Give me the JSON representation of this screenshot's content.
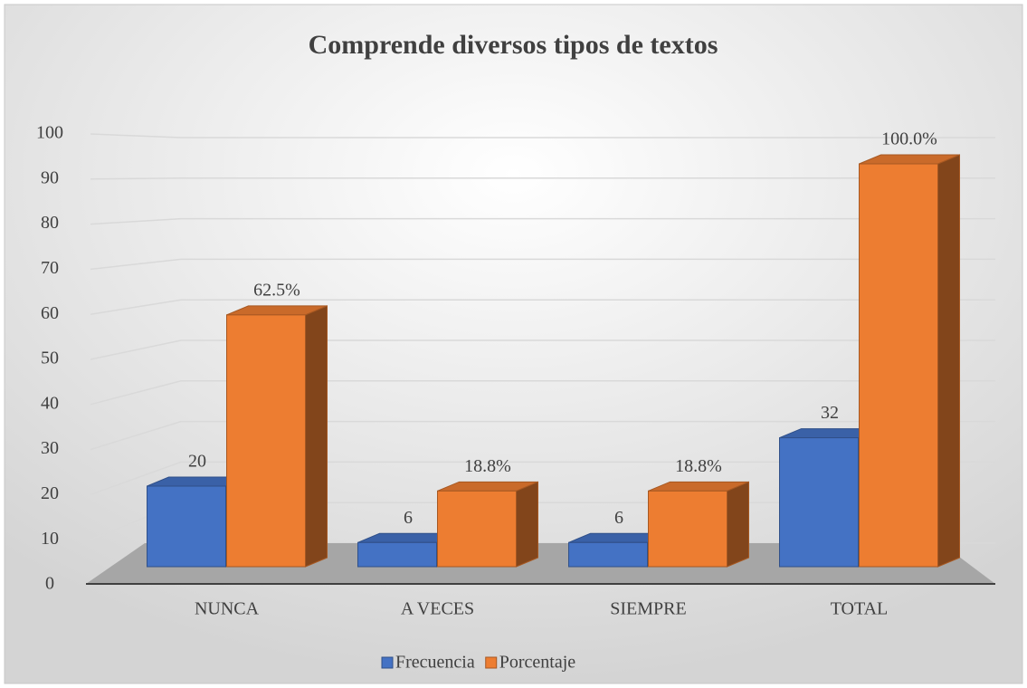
{
  "chart_data": {
    "type": "bar3d",
    "title": "Comprende diversos tipos de textos",
    "categories": [
      "NUNCA",
      "A VECES",
      "SIEMPRE",
      "TOTAL"
    ],
    "series": [
      {
        "name": "Frecuencia",
        "color": "#4472c4",
        "values": [
          20,
          6,
          6,
          32
        ]
      },
      {
        "name": "Porcentaje",
        "color": "#ed7d31",
        "values": [
          62.5,
          18.8,
          18.8,
          100.0
        ],
        "value_labels": [
          "62.5%",
          "18.8%",
          "18.8%",
          "100.0%"
        ]
      }
    ],
    "ylim": [
      0,
      100
    ],
    "yticks": [
      0,
      10,
      20,
      30,
      40,
      50,
      60,
      70,
      80,
      90,
      100
    ],
    "grid": true,
    "legend": "bottom"
  }
}
